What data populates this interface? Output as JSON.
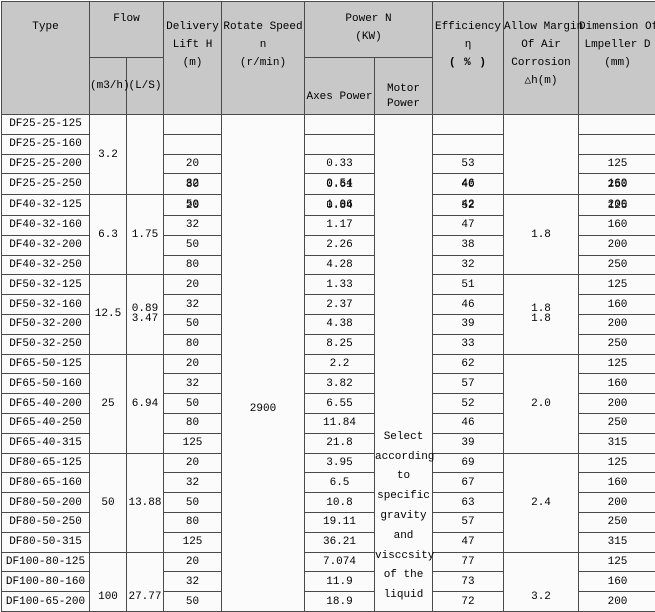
{
  "theme": {
    "header_bg": "#c8c8c8",
    "cell_bg": "#fbfbfb",
    "grid_line": "#4a4a4a",
    "text": "#000000"
  },
  "header": {
    "type": "Type",
    "flow": "Flow",
    "flow_m3h": "(m3/h)",
    "flow_ls": "(L/S)",
    "lift_lines": [
      "Delivery",
      "Lift H",
      "(m)"
    ],
    "rotate_lines": [
      "Rotate Speed",
      "n",
      "(r/min)"
    ],
    "power_lines": [
      "Power N",
      "(KW)"
    ],
    "axes_power": "Axes Power",
    "motor_lines": [
      "Motor",
      "Power"
    ],
    "efficiency_lines": [
      "Efficiency",
      "η",
      "( % )"
    ],
    "margin_lines": [
      "Allow Margin",
      "Of Air",
      "Corrosion",
      "△h(m)"
    ],
    "dimension_lines": [
      "Dimension Of",
      "Lmpeller D",
      "(mm)"
    ]
  },
  "body": {
    "rotate_speed": "2900",
    "motor_note": [
      "Select",
      "according",
      "to",
      "specific",
      "gravity",
      "and",
      "visccsity",
      "of the",
      "liquid"
    ]
  },
  "groups": [
    {
      "span": 4,
      "m3h": "3.2",
      "ls": "",
      "margin": ""
    },
    {
      "span": 4,
      "m3h": "6.3",
      "ls": "1.75",
      "margin": "1.8"
    },
    {
      "span": 4,
      "m3h": "12.5",
      "ls": [
        "0.89",
        "3.47"
      ],
      "margin": [
        "1.8",
        "1.8"
      ]
    },
    {
      "span": 5,
      "m3h": "25",
      "ls": "6.94",
      "margin": "2.0"
    },
    {
      "span": 5,
      "m3h": "50",
      "ls": "13.88",
      "margin": "2.4"
    },
    {
      "span": 3,
      "m3h": "100",
      "ls": "27.77",
      "margin": "3.2",
      "push": true
    }
  ],
  "rows": [
    {
      "type": "DF25-25-125",
      "lift": "",
      "axes": "",
      "eff": "",
      "dim": ""
    },
    {
      "type": "DF25-25-160",
      "lift": "",
      "axes": "",
      "eff": "",
      "dim": ""
    },
    {
      "type": "DF25-25-200",
      "lift": "20",
      "axes": "0.33",
      "eff": "53",
      "dim": "125"
    },
    {
      "type": "DF25-25-250",
      "lift": [
        "32",
        "80"
      ],
      "axes": [
        "0.54",
        "0.61"
      ],
      "eff": [
        "46",
        "40"
      ],
      "dim": [
        "160",
        "250"
      ]
    },
    {
      "type": "DF40-32-125",
      "lift": [
        "50",
        "20"
      ],
      "axes": [
        "1.06",
        "0.84"
      ],
      "eff": [
        "42",
        "52"
      ],
      "dim": [
        "200",
        "125"
      ]
    },
    {
      "type": "DF40-32-160",
      "lift": "32",
      "axes": "1.17",
      "eff": "47",
      "dim": "160"
    },
    {
      "type": "DF40-32-200",
      "lift": "50",
      "axes": "2.26",
      "eff": "38",
      "dim": "200"
    },
    {
      "type": "DF40-32-250",
      "lift": "80",
      "axes": "4.28",
      "eff": "32",
      "dim": "250"
    },
    {
      "type": "DF50-32-125",
      "lift": "20",
      "axes": "1.33",
      "eff": "51",
      "dim": "125"
    },
    {
      "type": "DF50-32-160",
      "lift": "32",
      "axes": "2.37",
      "eff": "46",
      "dim": "160"
    },
    {
      "type": "DF50-32-200",
      "lift": "50",
      "axes": "4.38",
      "eff": "39",
      "dim": "200"
    },
    {
      "type": "DF50-32-250",
      "lift": "80",
      "axes": "8.25",
      "eff": "33",
      "dim": "250"
    },
    {
      "type": "DF65-50-125",
      "lift": "20",
      "axes": "2.2",
      "eff": "62",
      "dim": "125"
    },
    {
      "type": "DF65-50-160",
      "lift": "32",
      "axes": "3.82",
      "eff": "57",
      "dim": "160"
    },
    {
      "type": "DF65-40-200",
      "lift": "50",
      "axes": "6.55",
      "eff": "52",
      "dim": "200"
    },
    {
      "type": "DF65-40-250",
      "lift": "80",
      "axes": "11.84",
      "eff": "46",
      "dim": "250"
    },
    {
      "type": "DF65-40-315",
      "lift": "125",
      "axes": "21.8",
      "eff": "39",
      "dim": "315"
    },
    {
      "type": "DF80-65-125",
      "lift": "20",
      "axes": "3.95",
      "eff": "69",
      "dim": "125"
    },
    {
      "type": "DF80-65-160",
      "lift": "32",
      "axes": "6.5",
      "eff": "67",
      "dim": "160"
    },
    {
      "type": "DF80-50-200",
      "lift": "50",
      "axes": "10.8",
      "eff": "63",
      "dim": "200"
    },
    {
      "type": "DF80-50-250",
      "lift": "80",
      "axes": "19.11",
      "eff": "57",
      "dim": "250"
    },
    {
      "type": "DF80-50-315",
      "lift": "125",
      "axes": "36.21",
      "eff": "47",
      "dim": "315"
    },
    {
      "type": "DF100-80-125",
      "lift": "20",
      "axes": "7.074",
      "eff": "77",
      "dim": "125"
    },
    {
      "type": "DF100-80-160",
      "lift": "32",
      "axes": "11.9",
      "eff": "73",
      "dim": "160"
    },
    {
      "type": "DF100-65-200",
      "lift": "50",
      "axes": "18.9",
      "eff": "72",
      "dim": "200"
    }
  ]
}
